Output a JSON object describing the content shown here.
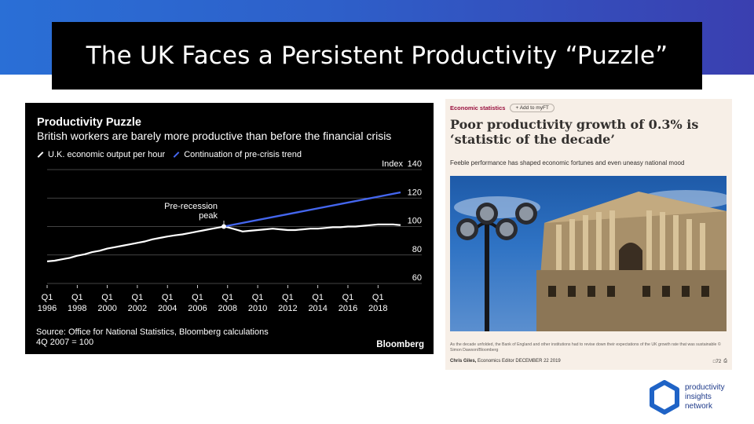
{
  "slide": {
    "title": "The UK Faces a Persistent Productivity “Puzzle”"
  },
  "chart_panel": {
    "title": "Productivity Puzzle",
    "subtitle": "British workers are barely more productive than before the financial crisis",
    "legend": [
      {
        "label": "U.K. economic output per hour",
        "color": "#ffffff"
      },
      {
        "label": "Continuation of pre-crisis trend",
        "color": "#4466ee"
      }
    ],
    "annotation_line1": "Pre-recession",
    "annotation_line2": "peak",
    "source_line1": "Source: Office for National Statistics, Bloomberg calculations",
    "source_line2": "4Q 2007 = 100",
    "brand": "Bloomberg"
  },
  "chart_data": {
    "type": "line",
    "title": "Productivity Puzzle",
    "subtitle": "British workers are barely more productive than before the financial crisis",
    "ylabel": "Index",
    "ylim": [
      60,
      140
    ],
    "xlim": [
      1996,
      2019.5
    ],
    "yticks": [
      60,
      80,
      100,
      120,
      140
    ],
    "xticks": [
      {
        "q": "Q1",
        "year": "1996",
        "x": 1996
      },
      {
        "q": "Q1",
        "year": "1998",
        "x": 1998
      },
      {
        "q": "Q1",
        "year": "2000",
        "x": 2000
      },
      {
        "q": "Q1",
        "year": "2002",
        "x": 2002
      },
      {
        "q": "Q1",
        "year": "2004",
        "x": 2004
      },
      {
        "q": "Q1",
        "year": "2006",
        "x": 2006
      },
      {
        "q": "Q1",
        "year": "2008",
        "x": 2008
      },
      {
        "q": "Q1",
        "year": "2010",
        "x": 2010
      },
      {
        "q": "Q1",
        "year": "2012",
        "x": 2012
      },
      {
        "q": "Q1",
        "year": "2014",
        "x": 2014
      },
      {
        "q": "Q1",
        "year": "2016",
        "x": 2016
      },
      {
        "q": "Q1",
        "year": "2018",
        "x": 2018
      }
    ],
    "grid": true,
    "peak": {
      "x": 2007.75,
      "y": 100
    },
    "series": [
      {
        "name": "U.K. economic output per hour",
        "color": "#ffffff",
        "x": [
          1996,
          1996.5,
          1997,
          1997.5,
          1998,
          1998.5,
          1999,
          1999.5,
          2000,
          2000.5,
          2001,
          2001.5,
          2002,
          2002.5,
          2003,
          2003.5,
          2004,
          2004.5,
          2005,
          2005.5,
          2006,
          2006.5,
          2007,
          2007.5,
          2007.75,
          2008,
          2008.5,
          2009,
          2009.5,
          2010,
          2010.5,
          2011,
          2011.5,
          2012,
          2012.5,
          2013,
          2013.5,
          2014,
          2014.5,
          2015,
          2015.5,
          2016,
          2016.5,
          2017,
          2017.5,
          2018,
          2018.5,
          2019,
          2019.5
        ],
        "values": [
          75.5,
          76,
          77,
          78,
          79.5,
          80.5,
          82,
          83,
          84.5,
          85.5,
          86.5,
          87.5,
          88.5,
          89.5,
          91,
          92,
          93,
          93.8,
          94.5,
          95.5,
          96.5,
          97.5,
          98.5,
          99.5,
          100,
          99.5,
          98,
          96.5,
          97,
          97.5,
          98,
          98.5,
          98,
          97.5,
          97.5,
          98,
          98.5,
          98.5,
          99,
          99.5,
          99.5,
          100,
          100,
          100.5,
          101,
          101.5,
          101.5,
          101.5,
          101
        ]
      },
      {
        "name": "Continuation of pre-crisis trend",
        "color": "#4466ee",
        "x": [
          2007.75,
          2019.5
        ],
        "values": [
          100,
          124
        ]
      }
    ]
  },
  "article": {
    "section": "Economic statistics",
    "add_label": "+ Add to myFT",
    "headline": "Poor productivity growth of 0.3% is ‘statistic of the decade’",
    "standfirst": "Feeble performance has shaped economic fortunes and even uneasy national mood",
    "caption": "As the decade unfolded, the Bank of England and other institutions had to revise down their expectations of the UK growth rate that was sustainable © Simon Dawson/Bloomberg",
    "byline_name": "Chris Giles,",
    "byline_role": "Economics Editor",
    "byline_date": "DECEMBER 22 2019",
    "comments_count": "72"
  },
  "logo": {
    "line1": "productivity",
    "line2": "insights",
    "line3": "network",
    "color": "#1e3a8a"
  }
}
